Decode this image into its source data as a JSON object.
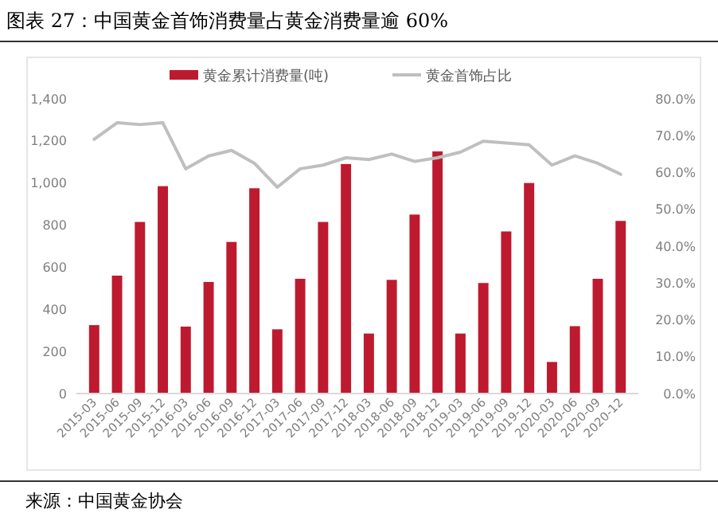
{
  "chart_data": {
    "type": "bar",
    "title": "图表 27：中国黄金首饰消费量占黄金消费量逾 60%",
    "annotations": [
      "来源：中国黄金协会"
    ],
    "categories": [
      "2015-03",
      "2015-06",
      "2015-09",
      "2015-12",
      "2016-03",
      "2016-06",
      "2016-09",
      "2016-12",
      "2017-03",
      "2017-06",
      "2017-09",
      "2017-12",
      "2018-03",
      "2018-06",
      "2018-09",
      "2018-12",
      "2019-03",
      "2019-06",
      "2019-09",
      "2019-12",
      "2020-03",
      "2020-06",
      "2020-09",
      "2020-12"
    ],
    "series": [
      {
        "name": "黄金累计消费量(吨)",
        "type": "bar",
        "color": "#be1a2f",
        "values": [
          325,
          560,
          815,
          985,
          318,
          530,
          720,
          975,
          305,
          545,
          815,
          1090,
          285,
          540,
          850,
          1150,
          285,
          525,
          770,
          1000,
          150,
          320,
          545,
          820
        ]
      },
      {
        "name": "黄金首饰占比",
        "type": "line",
        "axis": "y2",
        "color": "#bfbfbf",
        "values": [
          69,
          73.5,
          73,
          73.5,
          61,
          64.5,
          66,
          62.5,
          56,
          61,
          62,
          64,
          63.5,
          65,
          63,
          64,
          65.5,
          68.5,
          68,
          67.5,
          62,
          64.5,
          62.5,
          59.5
        ]
      }
    ],
    "ylim": [
      0,
      1400
    ],
    "yticks": [
      0,
      200,
      400,
      600,
      800,
      {
        "value": 1000,
        "label": "1,000"
      },
      {
        "value": 1200,
        "label": "1,200"
      },
      {
        "value": 1400,
        "label": "1,400"
      }
    ],
    "y2lim": [
      0,
      80
    ],
    "y2ticks": [
      {
        "value": 0,
        "label": "0.0%"
      },
      {
        "value": 10,
        "label": "10.0%"
      },
      {
        "value": 20,
        "label": "20.0%"
      },
      {
        "value": 30,
        "label": "30.0%"
      },
      {
        "value": 40,
        "label": "40.0%"
      },
      {
        "value": 50,
        "label": "50.0%"
      },
      {
        "value": 60,
        "label": "60.0%"
      },
      {
        "value": 70,
        "label": "70.0%"
      },
      {
        "value": 80,
        "label": "80.0%"
      }
    ],
    "legend": "top"
  }
}
